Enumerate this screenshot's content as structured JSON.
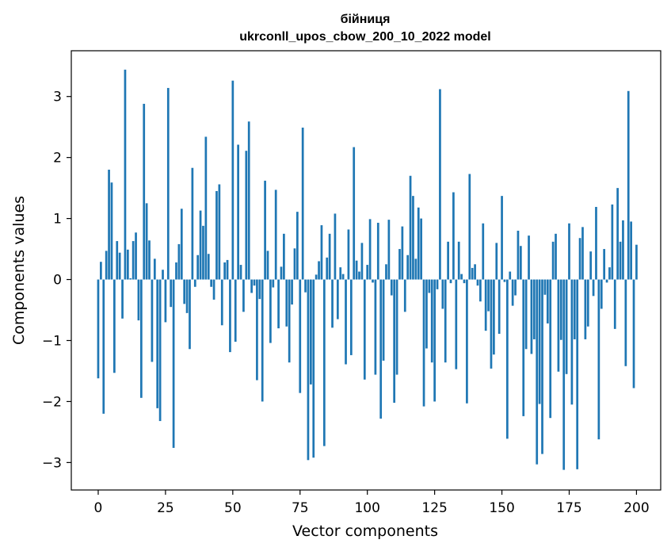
{
  "chart_data": {
    "type": "bar",
    "title_line1": "бійниця",
    "title_line2": "ukrconll_upos_cbow_200_10_2022 model",
    "xlabel": "Vector components",
    "ylabel": "Components values",
    "xlim": [
      -10,
      209
    ],
    "ylim": [
      -3.45,
      3.75
    ],
    "xticks": [
      0,
      25,
      50,
      75,
      100,
      125,
      150,
      175,
      200
    ],
    "yticks": [
      -3,
      -2,
      -1,
      0,
      1,
      2,
      3
    ],
    "ytick_labels": [
      "−3",
      "−2",
      "−1",
      "0",
      "1",
      "2",
      "3"
    ],
    "bar_color": "#1f77b4",
    "grid": false,
    "values": [
      -1.62,
      0.29,
      -2.2,
      0.47,
      1.8,
      1.59,
      -1.53,
      0.63,
      0.44,
      -0.64,
      3.44,
      0.49,
      0.02,
      0.63,
      0.77,
      -0.67,
      -1.94,
      2.88,
      1.25,
      0.64,
      -1.35,
      0.34,
      -2.11,
      -2.32,
      0.16,
      -0.7,
      3.14,
      -0.45,
      -2.76,
      0.28,
      0.58,
      1.16,
      -0.4,
      -0.55,
      -1.14,
      1.83,
      -0.12,
      0.4,
      1.13,
      0.88,
      2.34,
      0.42,
      -0.12,
      -0.33,
      1.45,
      1.56,
      -0.75,
      0.28,
      0.32,
      -1.19,
      3.26,
      -1.02,
      2.21,
      0.24,
      -0.53,
      2.11,
      2.59,
      -0.22,
      -0.1,
      -1.65,
      -0.32,
      -2.0,
      1.62,
      0.47,
      -1.04,
      -0.13,
      1.47,
      -0.8,
      0.21,
      0.75,
      -0.77,
      -1.36,
      -0.41,
      0.51,
      1.11,
      -1.86,
      2.49,
      -0.21,
      -2.96,
      -1.72,
      -2.92,
      0.08,
      0.3,
      0.89,
      -2.73,
      0.36,
      0.75,
      -0.79,
      1.08,
      -0.65,
      0.2,
      0.09,
      -1.39,
      0.82,
      -1.24,
      2.17,
      0.31,
      0.13,
      0.6,
      -1.64,
      0.24,
      0.99,
      -0.05,
      -1.56,
      0.93,
      -2.28,
      -1.33,
      0.25,
      0.98,
      -0.26,
      -2.02,
      -1.56,
      0.5,
      0.87,
      -0.53,
      0.4,
      1.7,
      1.37,
      0.34,
      1.18,
      1.0,
      -2.08,
      -1.13,
      -0.22,
      -1.36,
      -2.0,
      -0.16,
      3.12,
      -0.48,
      -1.36,
      0.62,
      -0.06,
      1.43,
      -1.47,
      0.62,
      0.09,
      -0.06,
      -2.03,
      1.73,
      0.19,
      0.25,
      -0.1,
      -0.36,
      0.92,
      -0.84,
      -0.52,
      -1.46,
      -1.23,
      0.6,
      -0.89,
      1.37,
      -0.04,
      -2.61,
      0.13,
      -0.43,
      -0.26,
      0.8,
      0.55,
      -2.24,
      -1.14,
      0.72,
      -1.22,
      -0.98,
      -3.03,
      -2.04,
      -2.86,
      -0.25,
      -0.72,
      -2.27,
      0.62,
      0.75,
      -1.51,
      -0.99,
      -3.12,
      -1.55,
      0.92,
      -2.05,
      -0.98,
      -3.11,
      0.68,
      0.86,
      -0.98,
      -0.77,
      0.46,
      -0.27,
      1.19,
      -2.62,
      -0.48,
      0.5,
      -0.05,
      0.2,
      1.23,
      -0.81,
      1.5,
      0.62,
      0.97,
      -1.42,
      3.09,
      0.95,
      -1.78,
      0.57
    ]
  }
}
